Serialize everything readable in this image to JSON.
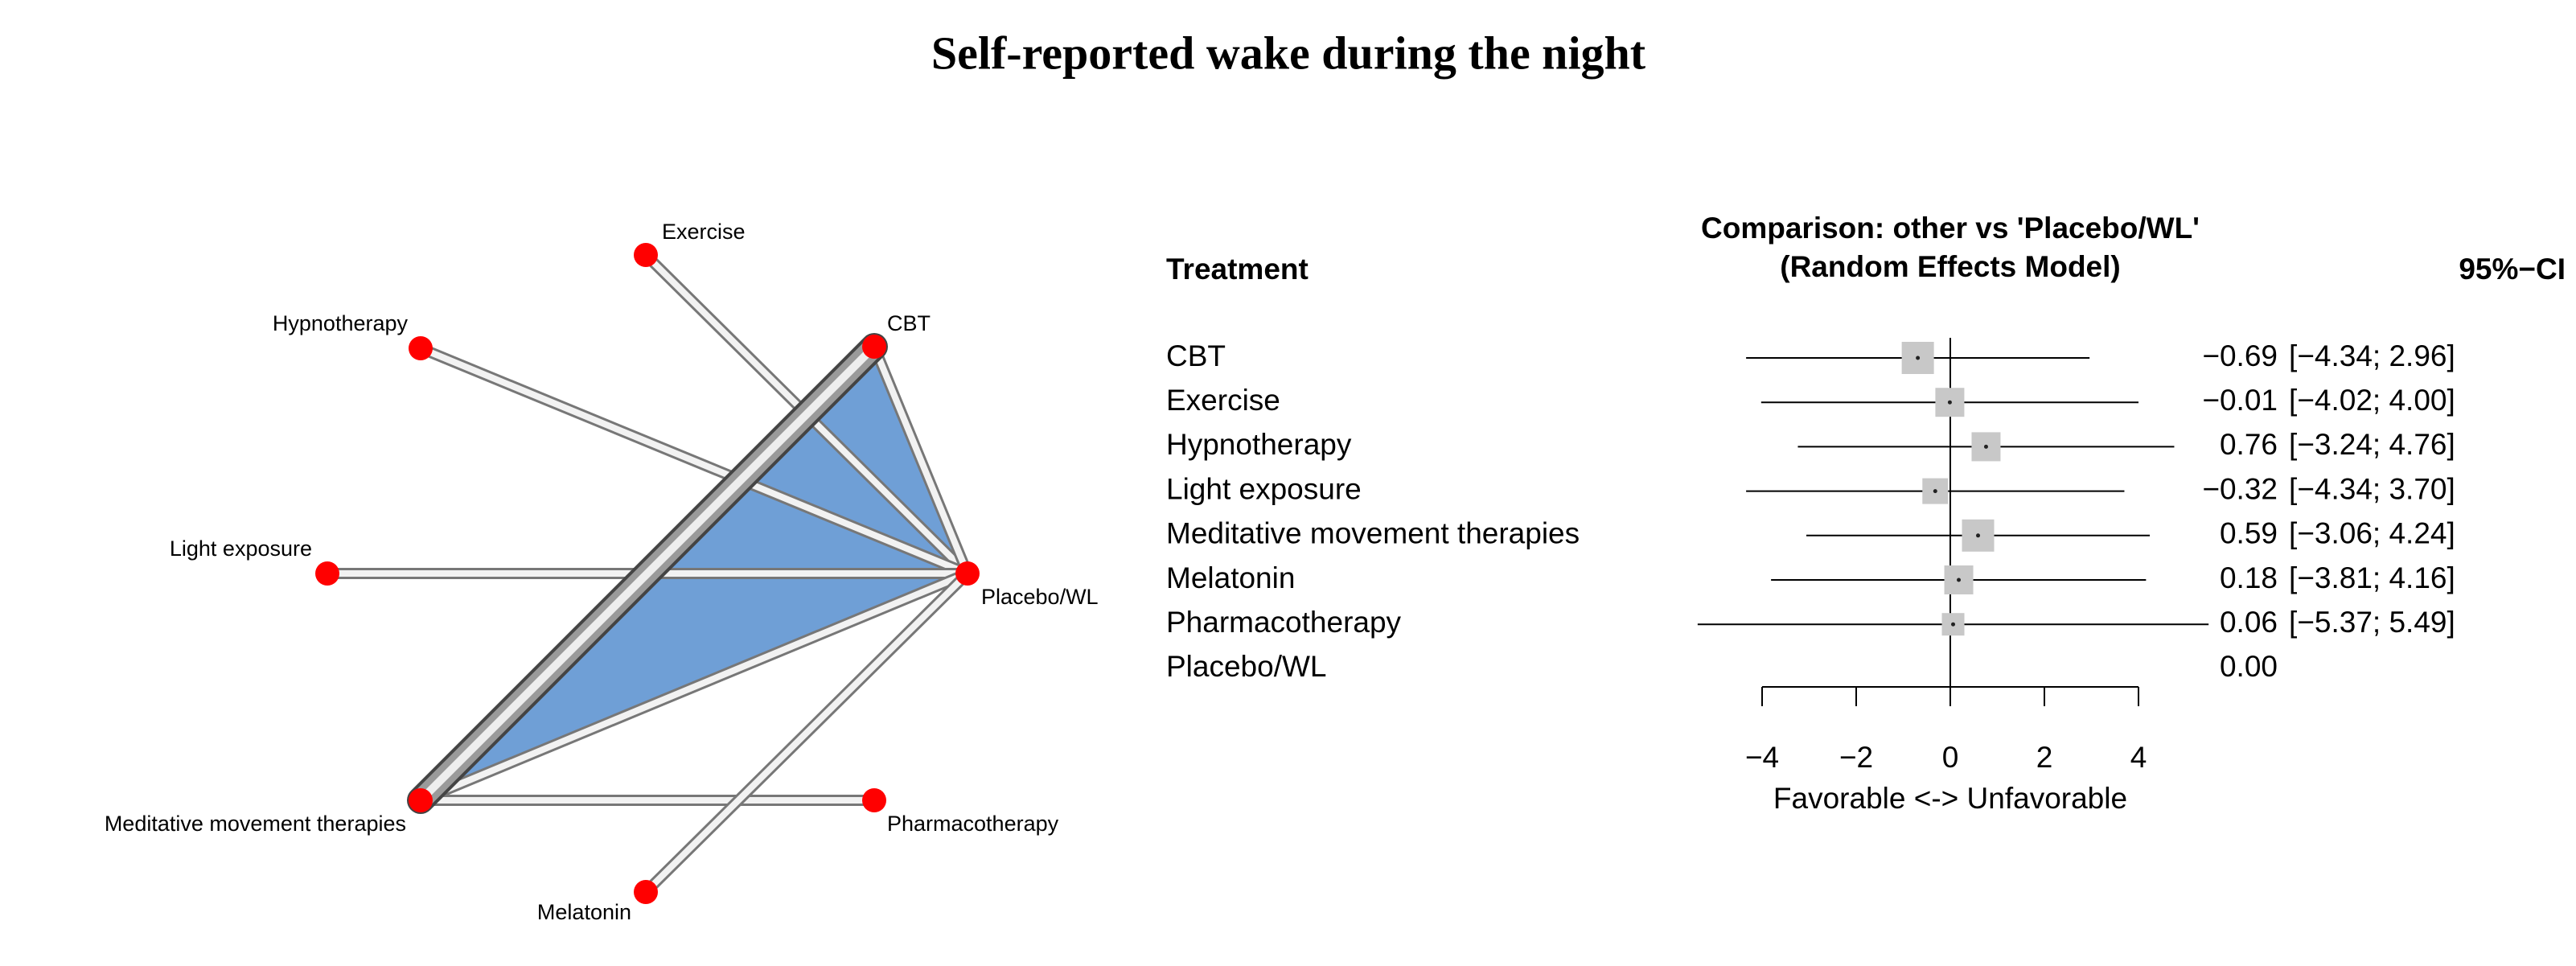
{
  "title": "Self-reported  wake during the night",
  "network": {
    "nodes": [
      "CBT",
      "Exercise",
      "Hypnotherapy",
      "Light exposure",
      "Meditative movement therapies",
      "Melatonin",
      "Pharmacotherapy",
      "Placebo/WL"
    ]
  },
  "chart_data": {
    "type": "forest",
    "title": "Comparison: other vs 'Placebo/WL'",
    "subtitle": "(Random Effects Model)",
    "category_header": "Treatment",
    "ci_header": "95%−CI",
    "categories": [
      "CBT",
      "Exercise",
      "Hypnotherapy",
      "Light exposure",
      "Meditative movement therapies",
      "Melatonin",
      "Pharmacotherapy",
      "Placebo/WL"
    ],
    "values": [
      -0.69,
      -0.01,
      0.76,
      -0.32,
      0.59,
      0.18,
      0.06,
      0
    ],
    "value_labels": [
      "−0.69",
      "−0.01",
      "0.76",
      "−0.32",
      "0.59",
      "0.18",
      "0.06",
      "0.00"
    ],
    "lower": [
      -4.34,
      -4.02,
      -3.24,
      -4.34,
      -3.06,
      -3.81,
      -5.37,
      null
    ],
    "upper": [
      2.96,
      4.0,
      4.76,
      3.7,
      4.24,
      4.16,
      5.49,
      null
    ],
    "ci_labels": [
      "[−4.34; 2.96]",
      "[−4.02; 4.00]",
      "[−3.24; 4.76]",
      "[−4.34; 3.70]",
      "[−3.06; 4.24]",
      "[−3.81; 4.16]",
      "[−5.37; 5.49]",
      null
    ],
    "reference_line": 0,
    "xlim": [
      -4,
      4
    ],
    "xticks": [
      {
        "value": -4,
        "label": "−4"
      },
      {
        "value": -2,
        "label": "−2"
      },
      0,
      2,
      4
    ],
    "xlabel": "Favorable <-> Unfavorable",
    "color": "#c8c8c8"
  }
}
